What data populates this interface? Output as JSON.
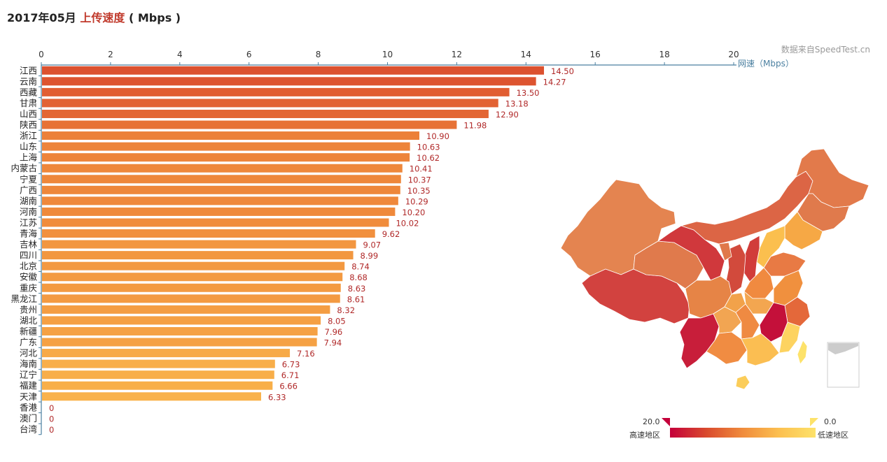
{
  "title": {
    "date": "2017年05月",
    "metric": "上传速度",
    "unit": "( Mbps )"
  },
  "source": "数据来自SpeedTest.cn",
  "chart_data": {
    "type": "bar",
    "orientation": "horizontal",
    "xlim": [
      0,
      20
    ],
    "xticks": [
      "0",
      "2",
      "4",
      "6",
      "8",
      "10",
      "12",
      "14",
      "16",
      "18",
      "20"
    ],
    "axis_label": "网速（Mbps）",
    "categories": [
      "江西",
      "云南",
      "西藏",
      "甘肃",
      "山西",
      "陕西",
      "浙江",
      "山东",
      "上海",
      "内蒙古",
      "宁夏",
      "广西",
      "湖南",
      "河南",
      "江苏",
      "青海",
      "吉林",
      "四川",
      "北京",
      "安徽",
      "重庆",
      "黑龙江",
      "贵州",
      "湖北",
      "新疆",
      "广东",
      "河北",
      "海南",
      "辽宁",
      "福建",
      "天津",
      "香港",
      "澳门",
      "台湾"
    ],
    "values": [
      14.5,
      14.27,
      13.5,
      13.18,
      12.9,
      11.98,
      10.9,
      10.63,
      10.62,
      10.41,
      10.37,
      10.35,
      10.29,
      10.2,
      10.02,
      9.62,
      9.07,
      8.99,
      8.74,
      8.68,
      8.63,
      8.61,
      8.32,
      8.05,
      7.96,
      7.94,
      7.16,
      6.73,
      6.71,
      6.66,
      6.33,
      0,
      0,
      0
    ],
    "value_labels": [
      "14.50",
      "14.27",
      "13.50",
      "13.18",
      "12.90",
      "11.98",
      "10.90",
      "10.63",
      "10.62",
      "10.41",
      "10.37",
      "10.35",
      "10.29",
      "10.20",
      "10.02",
      "9.62",
      "9.07",
      "8.99",
      "8.74",
      "8.68",
      "8.63",
      "8.61",
      "8.32",
      "8.05",
      "7.96",
      "7.94",
      "7.16",
      "6.73",
      "6.71",
      "6.66",
      "6.33",
      "0",
      "0",
      "0"
    ]
  },
  "legend": {
    "max_value": "20.0",
    "min_value": "0.0",
    "high_label": "高速地区",
    "low_label": "低速地区",
    "color_high": "#c4003a",
    "color_low": "#fde26a"
  },
  "colors": {
    "axis": "#4a7fa0",
    "value_label": "#b02828"
  }
}
